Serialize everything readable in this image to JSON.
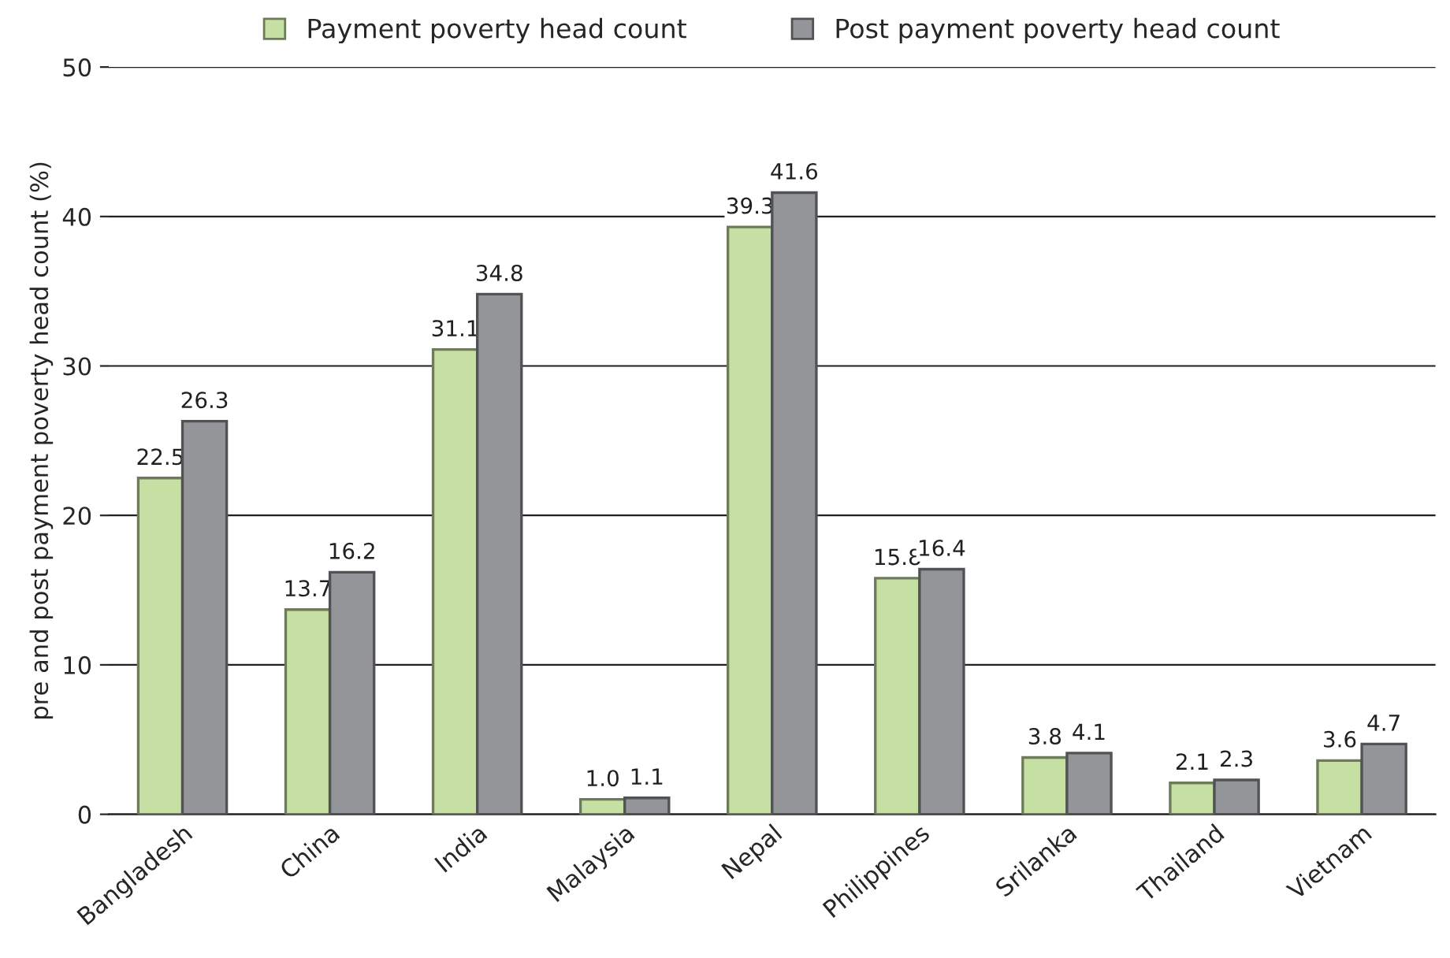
{
  "chart_data": {
    "type": "bar",
    "ylabel": "pre and post payment poverty head count (%)",
    "categories": [
      "Bangladesh",
      "China",
      "India",
      "Malaysia",
      "Nepal",
      "Philippines",
      "Srilanka",
      "Thailand",
      "Vietnam"
    ],
    "series": [
      {
        "name": "Payment poverty head count",
        "color": "#c6e0a4",
        "values": [
          22.5,
          13.7,
          31.1,
          1.0,
          39.3,
          15.8,
          3.8,
          2.1,
          3.6
        ],
        "value_labels": [
          "22.5",
          "13.7",
          "31.1",
          "1.0",
          "39.3",
          "15.8",
          "3.8",
          "2.1",
          "3.6"
        ]
      },
      {
        "name": "Post payment poverty head count",
        "color": "#939598",
        "values": [
          26.3,
          16.2,
          34.8,
          1.1,
          41.6,
          16.4,
          4.1,
          2.3,
          4.7
        ],
        "value_labels": [
          "26.3",
          "16.2",
          "34.8",
          "1.1",
          "41.6",
          "16.4",
          "4.1",
          "2.3",
          "4.7"
        ]
      }
    ],
    "ylim": [
      0,
      50
    ],
    "yticks": [
      0,
      10,
      20,
      30,
      40,
      50
    ],
    "grid": "y",
    "legend": "top"
  }
}
